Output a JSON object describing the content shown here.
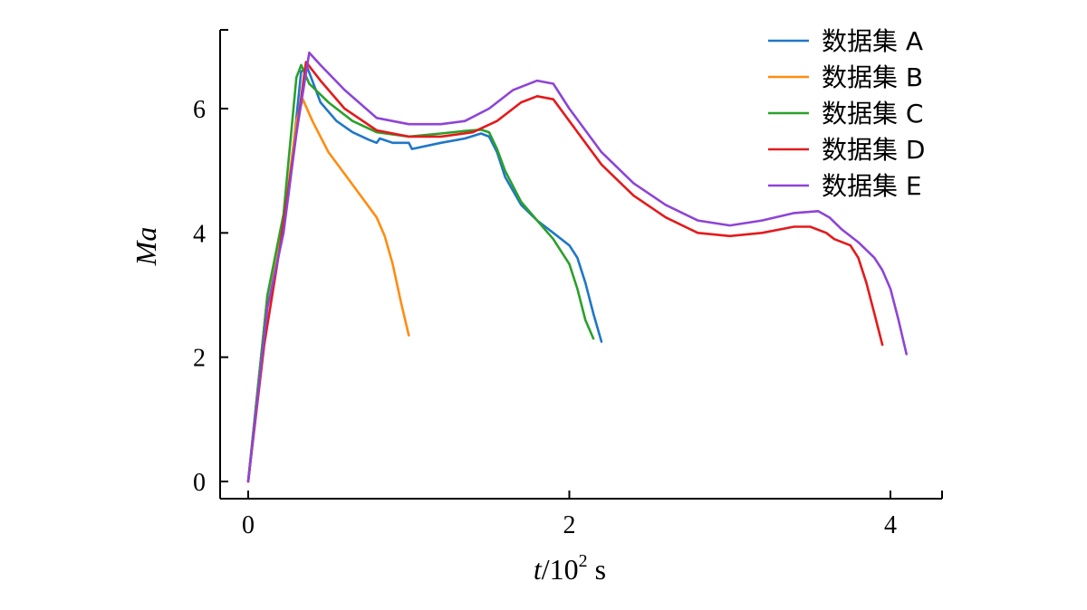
{
  "chart_data": {
    "type": "line",
    "xlabel": {
      "italic": "t",
      "text": "/10",
      "sup": "2",
      "unit": " s"
    },
    "ylabel": "Ma",
    "xlim": [
      -0.17,
      4.33
    ],
    "ylim": [
      -0.3,
      7.35
    ],
    "xticks": [
      0,
      2,
      4
    ],
    "yticks": [
      0,
      2,
      4,
      6
    ],
    "grid": false,
    "legend_position": "top-right",
    "series": [
      {
        "name": "数据集 A",
        "color": "#1f77c8",
        "points": [
          [
            0,
            0
          ],
          [
            0.12,
            3.0
          ],
          [
            0.25,
            4.6
          ],
          [
            0.33,
            6.6
          ],
          [
            0.37,
            6.65
          ],
          [
            0.45,
            6.1
          ],
          [
            0.55,
            5.8
          ],
          [
            0.65,
            5.62
          ],
          [
            0.75,
            5.5
          ],
          [
            0.8,
            5.45
          ],
          [
            0.82,
            5.52
          ],
          [
            0.9,
            5.45
          ],
          [
            1.0,
            5.45
          ],
          [
            1.02,
            5.35
          ],
          [
            1.2,
            5.45
          ],
          [
            1.35,
            5.52
          ],
          [
            1.45,
            5.6
          ],
          [
            1.5,
            5.55
          ],
          [
            1.55,
            5.3
          ],
          [
            1.6,
            4.9
          ],
          [
            1.7,
            4.45
          ],
          [
            1.8,
            4.2
          ],
          [
            1.9,
            4.0
          ],
          [
            2.0,
            3.8
          ],
          [
            2.05,
            3.6
          ],
          [
            2.1,
            3.2
          ],
          [
            2.15,
            2.7
          ],
          [
            2.2,
            2.25
          ]
        ]
      },
      {
        "name": "数据集 B",
        "color": "#ff8c10",
        "points": [
          [
            0,
            0
          ],
          [
            0.12,
            3.0
          ],
          [
            0.22,
            4.1
          ],
          [
            0.3,
            5.8
          ],
          [
            0.34,
            6.15
          ],
          [
            0.4,
            5.8
          ],
          [
            0.5,
            5.3
          ],
          [
            0.6,
            4.95
          ],
          [
            0.7,
            4.6
          ],
          [
            0.8,
            4.25
          ],
          [
            0.85,
            3.95
          ],
          [
            0.9,
            3.5
          ],
          [
            0.95,
            2.9
          ],
          [
            1.0,
            2.35
          ]
        ]
      },
      {
        "name": "数据集 C",
        "color": "#2ba02b",
        "points": [
          [
            0,
            0
          ],
          [
            0.12,
            3.0
          ],
          [
            0.22,
            4.3
          ],
          [
            0.3,
            6.5
          ],
          [
            0.33,
            6.7
          ],
          [
            0.38,
            6.4
          ],
          [
            0.5,
            6.1
          ],
          [
            0.65,
            5.8
          ],
          [
            0.8,
            5.62
          ],
          [
            1.0,
            5.55
          ],
          [
            1.2,
            5.6
          ],
          [
            1.35,
            5.64
          ],
          [
            1.45,
            5.66
          ],
          [
            1.5,
            5.62
          ],
          [
            1.55,
            5.35
          ],
          [
            1.6,
            5.0
          ],
          [
            1.7,
            4.5
          ],
          [
            1.8,
            4.2
          ],
          [
            1.9,
            3.9
          ],
          [
            2.0,
            3.5
          ],
          [
            2.05,
            3.1
          ],
          [
            2.1,
            2.6
          ],
          [
            2.15,
            2.3
          ]
        ]
      },
      {
        "name": "数据集 D",
        "color": "#e41a1c",
        "points": [
          [
            0,
            0
          ],
          [
            0.1,
            2.2
          ],
          [
            0.2,
            3.8
          ],
          [
            0.3,
            5.6
          ],
          [
            0.36,
            6.75
          ],
          [
            0.45,
            6.45
          ],
          [
            0.6,
            6.0
          ],
          [
            0.8,
            5.65
          ],
          [
            1.0,
            5.55
          ],
          [
            1.2,
            5.55
          ],
          [
            1.4,
            5.62
          ],
          [
            1.55,
            5.8
          ],
          [
            1.7,
            6.1
          ],
          [
            1.8,
            6.2
          ],
          [
            1.9,
            6.15
          ],
          [
            2.0,
            5.8
          ],
          [
            2.2,
            5.1
          ],
          [
            2.4,
            4.6
          ],
          [
            2.6,
            4.25
          ],
          [
            2.8,
            4.0
          ],
          [
            3.0,
            3.95
          ],
          [
            3.2,
            4.0
          ],
          [
            3.4,
            4.1
          ],
          [
            3.5,
            4.1
          ],
          [
            3.6,
            4.0
          ],
          [
            3.65,
            3.9
          ],
          [
            3.75,
            3.8
          ],
          [
            3.8,
            3.6
          ],
          [
            3.85,
            3.2
          ],
          [
            3.9,
            2.7
          ],
          [
            3.95,
            2.2
          ]
        ]
      },
      {
        "name": "数据集 E",
        "color": "#8e44d6",
        "points": [
          [
            0,
            0
          ],
          [
            0.12,
            2.8
          ],
          [
            0.22,
            4.0
          ],
          [
            0.3,
            5.6
          ],
          [
            0.38,
            6.9
          ],
          [
            0.45,
            6.7
          ],
          [
            0.6,
            6.3
          ],
          [
            0.8,
            5.85
          ],
          [
            1.0,
            5.75
          ],
          [
            1.2,
            5.75
          ],
          [
            1.35,
            5.8
          ],
          [
            1.5,
            6.0
          ],
          [
            1.65,
            6.3
          ],
          [
            1.8,
            6.45
          ],
          [
            1.9,
            6.4
          ],
          [
            2.0,
            6.0
          ],
          [
            2.2,
            5.3
          ],
          [
            2.4,
            4.8
          ],
          [
            2.6,
            4.45
          ],
          [
            2.8,
            4.2
          ],
          [
            3.0,
            4.12
          ],
          [
            3.2,
            4.2
          ],
          [
            3.4,
            4.32
          ],
          [
            3.55,
            4.35
          ],
          [
            3.62,
            4.25
          ],
          [
            3.7,
            4.05
          ],
          [
            3.8,
            3.85
          ],
          [
            3.9,
            3.6
          ],
          [
            3.95,
            3.4
          ],
          [
            4.0,
            3.1
          ],
          [
            4.05,
            2.6
          ],
          [
            4.1,
            2.05
          ]
        ]
      }
    ]
  }
}
